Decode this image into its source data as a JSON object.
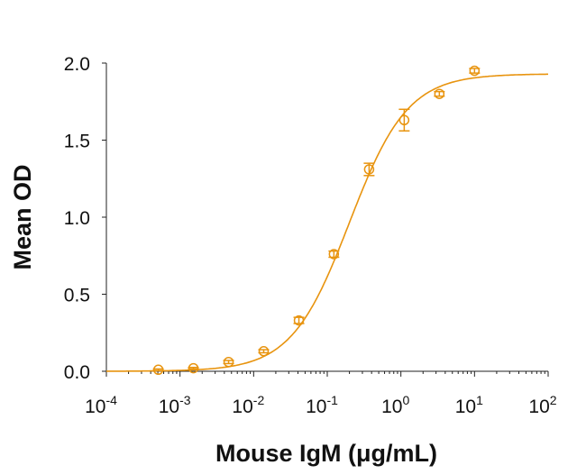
{
  "chart_data": {
    "type": "scatter",
    "title": "",
    "xlabel": "Mouse IgM (μg/mL)",
    "ylabel": "Mean OD",
    "x_scale": "log",
    "xlim": [
      0.0001,
      100
    ],
    "ylim": [
      0,
      2.0
    ],
    "x_tick_labels": [
      {
        "base": "10",
        "exp": "-4"
      },
      {
        "base": "10",
        "exp": "-3"
      },
      {
        "base": "10",
        "exp": "-2"
      },
      {
        "base": "10",
        "exp": "-1"
      },
      {
        "base": "10",
        "exp": "0"
      },
      {
        "base": "10",
        "exp": "1"
      },
      {
        "base": "10",
        "exp": "2"
      }
    ],
    "y_tick_labels": [
      "0.0",
      "0.5",
      "1.0",
      "1.5",
      "2.0"
    ],
    "grid": false,
    "color": "#E8940F",
    "series": [
      {
        "x": [
          0.000508,
          0.00152,
          0.00457,
          0.0137,
          0.0412,
          0.123,
          0.37,
          1.11,
          3.33,
          10
        ],
        "y": [
          0.01,
          0.02,
          0.06,
          0.13,
          0.33,
          0.76,
          1.31,
          1.63,
          1.8,
          1.95
        ],
        "error": [
          0.005,
          0.005,
          0.01,
          0.01,
          0.02,
          0.02,
          0.04,
          0.07,
          0.015,
          0.015
        ]
      }
    ],
    "fit": {
      "type": "4PL",
      "bottom": 0.0,
      "top": 1.93,
      "ec50": 0.2,
      "hill": 1.1
    }
  }
}
